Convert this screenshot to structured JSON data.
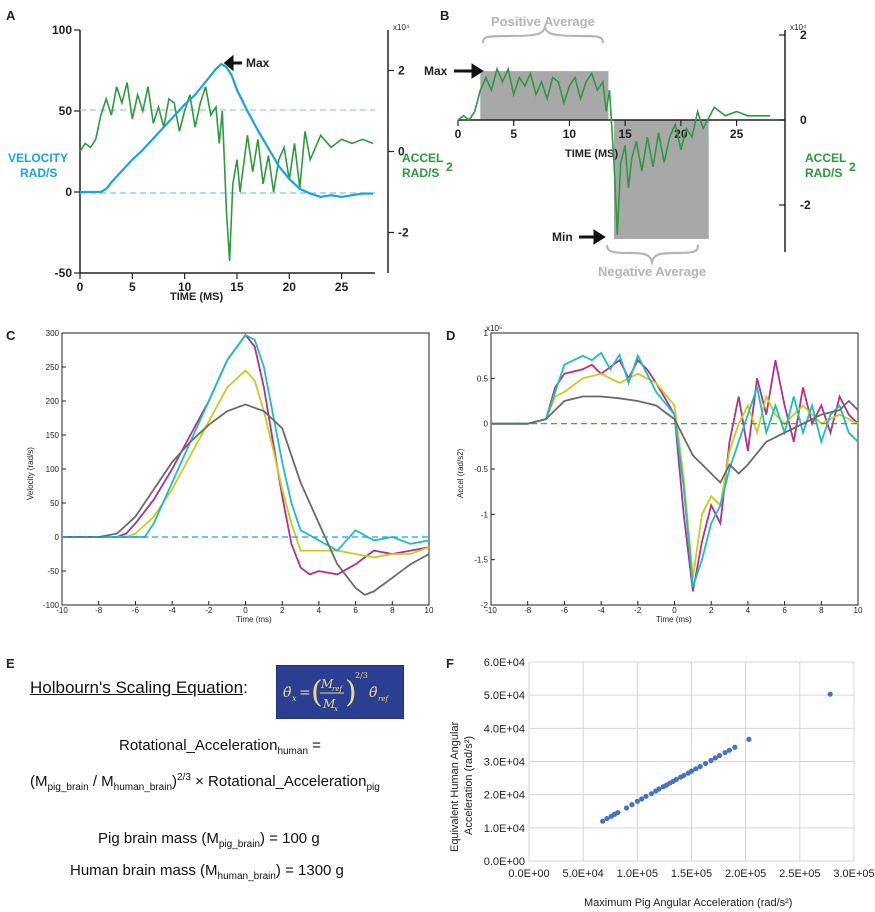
{
  "panels": {
    "a": {
      "letter": "A"
    },
    "b": {
      "letter": "B"
    },
    "c": {
      "letter": "C"
    },
    "d": {
      "letter": "D"
    },
    "e": {
      "letter": "E"
    },
    "f": {
      "letter": "F"
    }
  },
  "colors": {
    "velocity": "#1ba3e0",
    "accel": "#2e9a40",
    "magenta": "#b0318f",
    "yellow": "#c9cc1e",
    "cyan": "#1fbcc4",
    "dark_gray": "#6a6a6a",
    "shade": "#a8a8a8",
    "scatter": "#4472c4",
    "eq_box": "#2a3f92"
  },
  "panel_e": {
    "heading": "Holbourn's Scaling Equation",
    "heading_suffix": ":",
    "line1_main": "Rotational_Acceleration",
    "line1_sub": "human",
    "line1_tail": " =",
    "line2_a": "(M",
    "line2_sub1": "pig_brain",
    "line2_b": " / M",
    "line2_sub2": "human_brain",
    "line2_c": ")",
    "line2_sup": "2/3",
    "line2_d": " × Rotational_Acceleration",
    "line2_sub3": "pig",
    "pig_a": "Pig brain mass (M",
    "pig_sub": "pig_brain",
    "pig_b": ") = 100 g",
    "human_a": "Human brain mass (M",
    "human_sub": "human_brain",
    "human_b": ") = 1300 g"
  },
  "chart_data": [
    {
      "panel": "A",
      "type": "line",
      "xlabel": "TIME (MS)",
      "ylabel_left": [
        "VELOCITY",
        "RAD/S"
      ],
      "ylabel_right": [
        "ACCEL",
        "RAD/S",
        "2"
      ],
      "xlim": [
        0,
        28
      ],
      "ylim_left": [
        -50,
        100
      ],
      "x_ticks": [
        "0",
        "5",
        "10",
        "15",
        "20",
        "25"
      ],
      "y_ticks_left": [
        "-50",
        "0",
        "50",
        "100"
      ],
      "y_ticks_right": [
        "-2",
        "0",
        "2"
      ],
      "right_exponent": "x10⁴",
      "annotation": "Max",
      "series": [
        {
          "color_key": "velocity",
          "axis": "left",
          "x": [
            0,
            1,
            2,
            2.5,
            3,
            4,
            5,
            6,
            7,
            8,
            9,
            10,
            11,
            12,
            13,
            13.5,
            14,
            14.5,
            15,
            16,
            17,
            18,
            19,
            20,
            21,
            22,
            23,
            24,
            25,
            26,
            27,
            28
          ],
          "y": [
            0,
            0,
            0,
            2,
            6,
            13,
            20,
            26,
            33,
            40,
            47,
            54,
            60,
            68,
            76,
            79,
            77,
            72,
            63,
            50,
            38,
            27,
            16,
            8,
            2,
            -1,
            -3,
            -2,
            -3,
            -2,
            -1,
            -1
          ]
        },
        {
          "color_key": "accel",
          "axis": "right",
          "x": [
            0,
            0.5,
            1,
            1.5,
            2,
            2.5,
            3,
            3.5,
            4,
            4.5,
            5,
            5.5,
            6,
            6.5,
            7,
            7.5,
            8,
            8.5,
            9,
            9.5,
            10,
            10.5,
            11,
            11.5,
            12,
            12.5,
            13,
            13.3,
            13.6,
            14,
            14.3,
            14.6,
            15,
            15.3,
            15.6,
            16,
            16.5,
            17,
            17.5,
            18,
            18.5,
            19,
            19.5,
            20,
            20.5,
            21,
            21.5,
            22,
            23,
            24,
            25,
            26,
            27,
            28
          ],
          "y": [
            0,
            0.2,
            0.1,
            0.3,
            0.9,
            1.3,
            0.9,
            1.6,
            1.2,
            1.7,
            0.8,
            1.4,
            1.0,
            1.6,
            0.7,
            1.1,
            0.6,
            1.3,
            1.2,
            0.5,
            1.0,
            1.4,
            0.6,
            1.2,
            1.6,
            0.9,
            1.1,
            0.2,
            1.0,
            -1.5,
            -2.7,
            -0.8,
            -0.2,
            -1.0,
            -0.4,
            0.4,
            -0.5,
            0.3,
            -0.8,
            -0.1,
            -1.0,
            -0.2,
            0.1,
            -0.7,
            0.2,
            -0.9,
            0.5,
            -0.2,
            0.4,
            0.1,
            0.3,
            0.2,
            0.3,
            0.2
          ]
        }
      ]
    },
    {
      "panel": "B",
      "type": "area",
      "xlabel": "TIME (MS)",
      "ylabel_right": [
        "ACCEL",
        "RAD/S",
        "2"
      ],
      "xlim": [
        0,
        28
      ],
      "ylim": [
        -3,
        2
      ],
      "x_ticks": [
        "0",
        "5",
        "10",
        "15",
        "20",
        "25"
      ],
      "y_ticks": [
        "-2",
        "0",
        "2"
      ],
      "exponent": "x10⁴",
      "annotations": [
        "Positive Average",
        "Negative Average",
        "Max",
        "Min"
      ],
      "positive_region": {
        "x": [
          2,
          13.5
        ],
        "height": 1.15
      },
      "negative_region": {
        "x": [
          14,
          22.5
        ],
        "depth": -2.8
      },
      "series": [
        {
          "color_key": "accel",
          "x": [
            0,
            0.5,
            1,
            1.5,
            2,
            2.5,
            3,
            3.5,
            4,
            4.5,
            5,
            5.5,
            6,
            6.5,
            7,
            7.5,
            8,
            8.5,
            9,
            9.5,
            10,
            10.5,
            11,
            11.5,
            12,
            12.5,
            13,
            13.3,
            13.6,
            14,
            14.3,
            14.6,
            15,
            15.3,
            15.6,
            16,
            16.5,
            17,
            17.5,
            18,
            18.5,
            19,
            19.5,
            20,
            20.5,
            21,
            21.5,
            22,
            23,
            24,
            25,
            26,
            27,
            28
          ],
          "y": [
            0,
            0.1,
            0.0,
            0.2,
            0.7,
            1.0,
            0.7,
            1.2,
            0.9,
            1.2,
            0.6,
            1.0,
            0.8,
            1.1,
            0.6,
            0.9,
            0.5,
            1.0,
            0.9,
            0.4,
            0.8,
            1.0,
            0.5,
            0.9,
            1.1,
            0.7,
            0.9,
            0.2,
            0.7,
            -1.0,
            -2.7,
            -1.0,
            -0.6,
            -1.6,
            -0.9,
            -0.5,
            -1.2,
            -0.4,
            -1.1,
            -0.3,
            -1.0,
            -0.4,
            -0.1,
            -0.7,
            -0.2,
            -0.4,
            0.2,
            -0.2,
            0.3,
            0.1,
            0.2,
            0.1,
            0.1,
            0.1
          ]
        }
      ]
    },
    {
      "panel": "C",
      "type": "line",
      "xlabel": "Time (ms)",
      "ylabel": "Velocity (rad/s)",
      "xlim": [
        -10,
        10
      ],
      "ylim": [
        -100,
        300
      ],
      "x_ticks": [
        "-10",
        "-8",
        "-6",
        "-4",
        "-2",
        "0",
        "2",
        "4",
        "6",
        "8",
        "10"
      ],
      "y_ticks": [
        "-100",
        "-50",
        "0",
        "50",
        "100",
        "150",
        "200",
        "250",
        "300"
      ],
      "series": [
        {
          "color_key": "magenta",
          "x": [
            -10,
            -8,
            -7,
            -6.5,
            -6,
            -5,
            -4,
            -3,
            -2,
            -1,
            0,
            0.5,
            1,
            1.5,
            2,
            2.5,
            3,
            3.5,
            4,
            5,
            6,
            7,
            8,
            9,
            10
          ],
          "y": [
            0,
            0,
            0,
            5,
            20,
            55,
            100,
            150,
            200,
            260,
            297,
            280,
            220,
            140,
            60,
            -10,
            -45,
            -55,
            -50,
            -55,
            -40,
            -20,
            -25,
            -20,
            -15
          ]
        },
        {
          "color_key": "yellow",
          "x": [
            -10,
            -8,
            -7,
            -6.5,
            -6,
            -5,
            -4,
            -3,
            -2,
            -1,
            0,
            0.5,
            1,
            1.5,
            2,
            2.5,
            3,
            4,
            5,
            6,
            7,
            8,
            9,
            10
          ],
          "y": [
            0,
            0,
            0,
            0,
            5,
            30,
            70,
            120,
            170,
            220,
            245,
            230,
            185,
            130,
            70,
            20,
            -20,
            -20,
            -20,
            -25,
            -30,
            -25,
            -25,
            -15
          ]
        },
        {
          "color_key": "cyan",
          "x": [
            -10,
            -8,
            -6,
            -5.5,
            -5,
            -4.5,
            -4,
            -3,
            -2,
            -1,
            0,
            0.5,
            1,
            1.5,
            2,
            2.5,
            3,
            4,
            5,
            6,
            7,
            8,
            9,
            10
          ],
          "y": [
            0,
            0,
            0,
            0,
            20,
            50,
            80,
            140,
            200,
            260,
            297,
            290,
            250,
            180,
            110,
            50,
            10,
            -5,
            -20,
            10,
            -5,
            0,
            -10,
            -5
          ]
        },
        {
          "color_key": "dark_gray",
          "x": [
            -10,
            -8,
            -7,
            -6,
            -5,
            -4,
            -3,
            -2,
            -1,
            0,
            1,
            2,
            2.5,
            3,
            4,
            5,
            6,
            6.5,
            7,
            8,
            9,
            10
          ],
          "y": [
            0,
            0,
            5,
            30,
            70,
            110,
            140,
            165,
            185,
            195,
            185,
            160,
            120,
            80,
            20,
            -40,
            -75,
            -85,
            -80,
            -60,
            -40,
            -25
          ]
        },
        {
          "color_key": "velocity",
          "dashed": true,
          "x": [
            -10,
            10
          ],
          "y": [
            0,
            0
          ]
        }
      ]
    },
    {
      "panel": "D",
      "type": "line",
      "xlabel": "Time (ms)",
      "ylabel": "Accel (rad/s2)",
      "exponent": "x10⁵",
      "xlim": [
        -10,
        10
      ],
      "ylim": [
        -2,
        1
      ],
      "x_ticks": [
        "-10",
        "-8",
        "-6",
        "-4",
        "-2",
        "0",
        "2",
        "4",
        "6",
        "8",
        "10"
      ],
      "y_ticks": [
        "-2",
        "-1.5",
        "-1",
        "-0.5",
        "0",
        "0.5",
        "1"
      ],
      "series": [
        {
          "color_key": "magenta",
          "x": [
            -10,
            -8,
            -7,
            -6.5,
            -6,
            -5,
            -4.5,
            -4,
            -3,
            -2.5,
            -2,
            -1.5,
            -1,
            0,
            0.5,
            1,
            1.5,
            2,
            2.5,
            3,
            3.5,
            4,
            4.5,
            5,
            5.5,
            6,
            6.5,
            7,
            7.5,
            8,
            8.5,
            9,
            9.5,
            10
          ],
          "y": [
            0,
            0,
            0.05,
            0.4,
            0.55,
            0.6,
            0.65,
            0.55,
            0.7,
            0.5,
            0.7,
            0.6,
            0.45,
            0.1,
            -1.0,
            -1.85,
            -1.3,
            -0.9,
            -1.1,
            -0.2,
            0.3,
            -0.3,
            0.5,
            0.1,
            0.7,
            0.2,
            -0.2,
            0.4,
            0.0,
            0.2,
            -0.1,
            0.3,
            0.1,
            0.0
          ]
        },
        {
          "color_key": "yellow",
          "x": [
            -10,
            -8,
            -7,
            -6.5,
            -6,
            -5,
            -4,
            -3,
            -2,
            -1,
            0,
            0.5,
            1,
            1.5,
            2,
            2.5,
            3,
            3.5,
            4,
            4.5,
            5,
            5.5,
            6,
            7,
            8,
            9,
            10
          ],
          "y": [
            0,
            0,
            0.05,
            0.3,
            0.35,
            0.5,
            0.55,
            0.45,
            0.55,
            0.45,
            0.2,
            -0.6,
            -1.7,
            -1.0,
            -0.8,
            -0.9,
            -0.3,
            0.0,
            0.2,
            -0.1,
            0.3,
            0.1,
            0.0,
            0.2,
            0.0,
            0.1,
            0.0
          ]
        },
        {
          "color_key": "cyan",
          "x": [
            -10,
            -8,
            -7,
            -6.5,
            -6,
            -5,
            -4.5,
            -4,
            -3.5,
            -3,
            -2.5,
            -2,
            -1.5,
            -1,
            0,
            0.5,
            1,
            1.5,
            2,
            2.5,
            3,
            3.5,
            4,
            4.5,
            5,
            5.5,
            6,
            6.5,
            7,
            7.5,
            8,
            8.5,
            9,
            9.5,
            10
          ],
          "y": [
            0,
            0,
            0.05,
            0.35,
            0.65,
            0.75,
            0.7,
            0.78,
            0.6,
            0.76,
            0.45,
            0.75,
            0.55,
            0.35,
            0.1,
            -0.7,
            -1.8,
            -1.5,
            -1.1,
            -0.9,
            -0.5,
            -0.2,
            0.1,
            0.4,
            -0.1,
            0.2,
            -0.1,
            0.3,
            -0.1,
            0.2,
            -0.2,
            0.1,
            0.2,
            -0.1,
            -0.2
          ]
        },
        {
          "color_key": "dark_gray",
          "x": [
            -10,
            -8,
            -7,
            -6,
            -5,
            -4,
            -3,
            -2,
            -1,
            0,
            1,
            2,
            2.5,
            3,
            3.5,
            4,
            5,
            6,
            7,
            8,
            9,
            9.5,
            10
          ],
          "y": [
            0,
            0,
            0.05,
            0.25,
            0.3,
            0.3,
            0.28,
            0.25,
            0.2,
            0.05,
            -0.35,
            -0.55,
            -0.65,
            -0.45,
            -0.55,
            -0.45,
            -0.2,
            -0.1,
            0.0,
            0.1,
            0.15,
            0.25,
            0.15
          ]
        },
        {
          "color_key": "accel",
          "dashed": true,
          "x": [
            -10,
            10
          ],
          "y": [
            0,
            0
          ]
        }
      ]
    },
    {
      "panel": "F",
      "type": "scatter",
      "xlabel": "Maximum Pig Angular Acceleration (rad/s²)",
      "ylabel": [
        "Equivalent  Human  Angular",
        "Acceleration (rad/s²)"
      ],
      "xlim": [
        0,
        300000
      ],
      "ylim": [
        0,
        60000
      ],
      "x_ticks": [
        "0.0E+00",
        "5.0E+04",
        "1.0E+05",
        "1.5E+05",
        "2.0E+05",
        "2.5E+05",
        "3.0E+05"
      ],
      "y_ticks": [
        "0.0E+00",
        "1.0E+04",
        "2.0E+04",
        "3.0E+04",
        "4.0E+04",
        "5.0E+04",
        "6.0E+04"
      ],
      "grid": true,
      "x": [
        68000,
        72000,
        76000,
        79000,
        82000,
        90000,
        95000,
        100000,
        104000,
        108000,
        113000,
        117000,
        120000,
        124000,
        127000,
        130000,
        133000,
        136000,
        140000,
        143000,
        147000,
        150000,
        154000,
        158000,
        163000,
        168000,
        172000,
        176000,
        181000,
        185000,
        190000,
        203000,
        278000
      ],
      "y": [
        12000,
        12800,
        13500,
        14100,
        14600,
        16000,
        17000,
        18000,
        18700,
        19500,
        20300,
        21100,
        21700,
        22400,
        22900,
        23500,
        24000,
        24600,
        25300,
        25800,
        26500,
        27100,
        27800,
        28500,
        29400,
        30300,
        31100,
        31800,
        32700,
        33400,
        34300,
        36700,
        50300
      ]
    }
  ]
}
